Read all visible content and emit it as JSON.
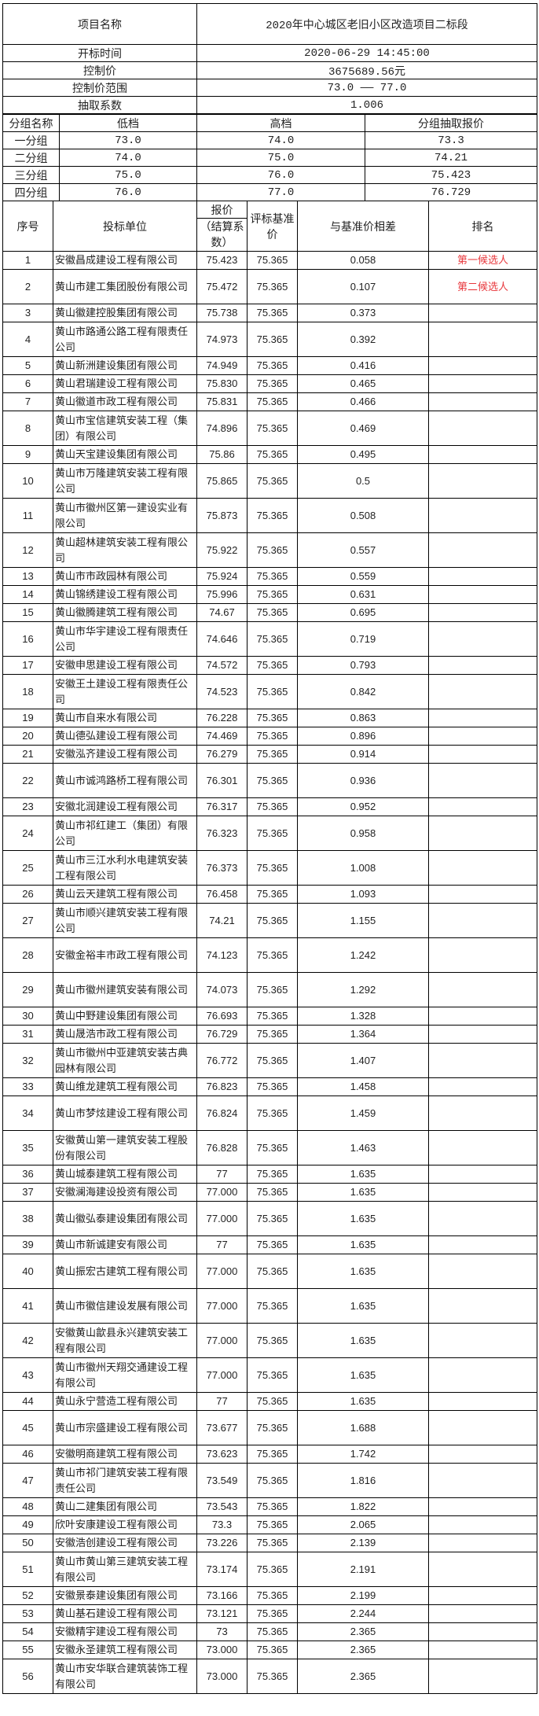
{
  "project": {
    "name_label": "项目名称",
    "name_value": "2020年中心城区老旧小区改造项目二标段",
    "open_time_label": "开标时间",
    "open_time_value": "2020-06-29 14:45:00",
    "control_price_label": "控制价",
    "control_price_value": "3675689.56元",
    "control_range_label": "控制价范围",
    "control_range_value": "73.0 —— 77.0",
    "coefficient_label": "抽取系数",
    "coefficient_value": "1.006"
  },
  "groups": {
    "headers": [
      "分组名称",
      "低档",
      "高档",
      "分组抽取报价"
    ],
    "rows": [
      [
        "一分组",
        "73.0",
        "74.0",
        "73.3"
      ],
      [
        "二分组",
        "74.0",
        "75.0",
        "74.21"
      ],
      [
        "三分组",
        "75.0",
        "76.0",
        "75.423"
      ],
      [
        "四分组",
        "76.0",
        "77.0",
        "76.729"
      ]
    ]
  },
  "bids": {
    "headers": {
      "no": "序号",
      "bidder": "投标单位",
      "price_top": "报价",
      "price_bottom": "（结算系数）",
      "base": "评标基准价",
      "diff": "与基准价相差",
      "rank": "排名"
    },
    "accent_color": "#e8383d",
    "rows": [
      [
        "1",
        "安徽昌成建设工程有限公司",
        "75.423",
        "75.365",
        "0.058",
        "第一候选人"
      ],
      [
        "2",
        "黄山市建工集团股份有限公司",
        "75.472",
        "75.365",
        "0.107",
        "第二候选人"
      ],
      [
        "3",
        "黄山徽建控股集团有限公司",
        "75.738",
        "75.365",
        "0.373",
        ""
      ],
      [
        "4",
        "黄山市路通公路工程有限责任公司",
        "74.973",
        "75.365",
        "0.392",
        ""
      ],
      [
        "5",
        "黄山新洲建设集团有限公司",
        "74.949",
        "75.365",
        "0.416",
        ""
      ],
      [
        "6",
        "黄山君瑞建设工程有限公司",
        "75.830",
        "75.365",
        "0.465",
        ""
      ],
      [
        "7",
        "黄山徽道市政工程有限公司",
        "75.831",
        "75.365",
        "0.466",
        ""
      ],
      [
        "8",
        "黄山市宝信建筑安装工程（集团）有限公司",
        "74.896",
        "75.365",
        "0.469",
        ""
      ],
      [
        "9",
        "黄山天宝建设集团有限公司",
        "75.86",
        "75.365",
        "0.495",
        ""
      ],
      [
        "10",
        "黄山市万隆建筑安装工程有限公司",
        "75.865",
        "75.365",
        "0.5",
        ""
      ],
      [
        "11",
        "黄山市徽州区第一建设实业有限公司",
        "75.873",
        "75.365",
        "0.508",
        ""
      ],
      [
        "12",
        "黄山超林建筑安装工程有限公司",
        "75.922",
        "75.365",
        "0.557",
        ""
      ],
      [
        "13",
        "黄山市市政园林有限公司",
        "75.924",
        "75.365",
        "0.559",
        ""
      ],
      [
        "14",
        "黄山锦绣建设工程有限公司",
        "75.996",
        "75.365",
        "0.631",
        ""
      ],
      [
        "15",
        "黄山徽腾建筑工程有限公司",
        "74.67",
        "75.365",
        "0.695",
        ""
      ],
      [
        "16",
        "黄山市华宇建设工程有限责任公司",
        "74.646",
        "75.365",
        "0.719",
        ""
      ],
      [
        "17",
        "安徽申思建设工程有限公司",
        "74.572",
        "75.365",
        "0.793",
        ""
      ],
      [
        "18",
        "安徽王土建设工程有限责任公司",
        "74.523",
        "75.365",
        "0.842",
        ""
      ],
      [
        "19",
        "黄山市自来水有限公司",
        "76.228",
        "75.365",
        "0.863",
        ""
      ],
      [
        "20",
        "黄山德弘建设工程有限公司",
        "74.469",
        "75.365",
        "0.896",
        ""
      ],
      [
        "21",
        "安徽泓齐建设工程有限公司",
        "76.279",
        "75.365",
        "0.914",
        ""
      ],
      [
        "22",
        "黄山市诚鸿路桥工程有限公司",
        "76.301",
        "75.365",
        "0.936",
        ""
      ],
      [
        "23",
        "安徽北润建设工程有限公司",
        "76.317",
        "75.365",
        "0.952",
        ""
      ],
      [
        "24",
        "黄山市祁红建工（集团）有限公司",
        "76.323",
        "75.365",
        "0.958",
        ""
      ],
      [
        "25",
        "黄山市三江水利水电建筑安装工程有限公司",
        "76.373",
        "75.365",
        "1.008",
        ""
      ],
      [
        "26",
        "黄山云天建筑工程有限公司",
        "76.458",
        "75.365",
        "1.093",
        ""
      ],
      [
        "27",
        "黄山市顺兴建筑安装工程有限公司",
        "74.21",
        "75.365",
        "1.155",
        ""
      ],
      [
        "28",
        "安徽金裕丰市政工程有限公司",
        "74.123",
        "75.365",
        "1.242",
        ""
      ],
      [
        "29",
        "黄山市徽州建筑安装有限公司",
        "74.073",
        "75.365",
        "1.292",
        ""
      ],
      [
        "30",
        "黄山中野建设集团有限公司",
        "76.693",
        "75.365",
        "1.328",
        ""
      ],
      [
        "31",
        "黄山晟浩市政工程有限公司",
        "76.729",
        "75.365",
        "1.364",
        ""
      ],
      [
        "32",
        "黄山市徽州中亚建筑安装古典园林有限公司",
        "76.772",
        "75.365",
        "1.407",
        ""
      ],
      [
        "33",
        "黄山维龙建筑工程有限公司",
        "76.823",
        "75.365",
        "1.458",
        ""
      ],
      [
        "34",
        "黄山市梦炫建设工程有限公司",
        "76.824",
        "75.365",
        "1.459",
        ""
      ],
      [
        "35",
        "安徽黄山第一建筑安装工程股份有限公司",
        "76.828",
        "75.365",
        "1.463",
        ""
      ],
      [
        "36",
        "黄山城泰建筑工程有限公司",
        "77",
        "75.365",
        "1.635",
        ""
      ],
      [
        "37",
        "安徽澜海建设投资有限公司",
        "77.000",
        "75.365",
        "1.635",
        ""
      ],
      [
        "38",
        "黄山徽弘泰建设集团有限公司",
        "77.000",
        "75.365",
        "1.635",
        ""
      ],
      [
        "39",
        "黄山市新诚建安有限公司",
        "77",
        "75.365",
        "1.635",
        ""
      ],
      [
        "40",
        "黄山振宏古建筑工程有限公司",
        "77.000",
        "75.365",
        "1.635",
        ""
      ],
      [
        "41",
        "黄山市徽信建设发展有限公司",
        "77.000",
        "75.365",
        "1.635",
        ""
      ],
      [
        "42",
        "安徽黄山歙县永兴建筑安装工程有限公司",
        "77.000",
        "75.365",
        "1.635",
        ""
      ],
      [
        "43",
        "黄山市徽州天翔交通建设工程有限公司",
        "77.000",
        "75.365",
        "1.635",
        ""
      ],
      [
        "44",
        "黄山永宁营造工程有限公司",
        "77",
        "75.365",
        "1.635",
        ""
      ],
      [
        "45",
        "黄山市宗盛建设工程有限公司",
        "73.677",
        "75.365",
        "1.688",
        ""
      ],
      [
        "46",
        "安徽明商建筑工程有限公司",
        "73.623",
        "75.365",
        "1.742",
        ""
      ],
      [
        "47",
        "黄山市祁门建筑安装工程有限责任公司",
        "73.549",
        "75.365",
        "1.816",
        ""
      ],
      [
        "48",
        "黄山二建集团有限公司",
        "73.543",
        "75.365",
        "1.822",
        ""
      ],
      [
        "49",
        "欣叶安康建设工程有限公司",
        "73.3",
        "75.365",
        "2.065",
        ""
      ],
      [
        "50",
        "安徽浩创建设工程有限公司",
        "73.226",
        "75.365",
        "2.139",
        ""
      ],
      [
        "51",
        "黄山市黄山第三建筑安装工程有限公司",
        "73.174",
        "75.365",
        "2.191",
        ""
      ],
      [
        "52",
        "安徽景泰建设集团有限公司",
        "73.166",
        "75.365",
        "2.199",
        ""
      ],
      [
        "53",
        "黄山基石建设工程有限公司",
        "73.121",
        "75.365",
        "2.244",
        ""
      ],
      [
        "54",
        "安徽精宇建设工程有限公司",
        "73",
        "75.365",
        "2.365",
        ""
      ],
      [
        "55",
        "安徽永圣建筑工程有限公司",
        "73.000",
        "75.365",
        "2.365",
        ""
      ],
      [
        "56",
        "黄山市安华联合建筑装饰工程有限公司",
        "73.000",
        "75.365",
        "2.365",
        ""
      ]
    ]
  }
}
